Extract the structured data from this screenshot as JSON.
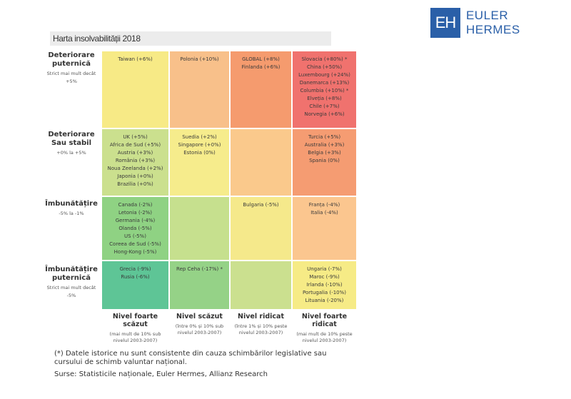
{
  "brand": {
    "logo_letters": "EH",
    "name": "EULER HERMES",
    "color": "#2a5fa8"
  },
  "chart_data": {
    "type": "heatmap",
    "title": "Harta insolvabilității 2018",
    "rows": [
      {
        "title": "Deteriorare puternică",
        "subtitle": "Strict mai mult decât +5%"
      },
      {
        "title": "Deteriorare Sau stabil",
        "subtitle": "+0% la +5%"
      },
      {
        "title": "Îmbunătățire",
        "subtitle": "-5% la -1%"
      },
      {
        "title": "Îmbunătățire puternică",
        "subtitle": "Strict mai mult decât -5%"
      }
    ],
    "columns": [
      {
        "title": "Nivel foarte scăzut",
        "subtitle": "(mai mult de 10% sub nivelul 2003-2007)"
      },
      {
        "title": "Nivel scăzut",
        "subtitle": "(între 0% și 10% sub nivelul 2003-2007)"
      },
      {
        "title": "Nivel ridicat",
        "subtitle": "(între 1% și 10% peste nivelul 2003-2007)"
      },
      {
        "title": "Nivel foarte ridicat",
        "subtitle": "(mai mult de 10% peste nivelul 2003-2007)"
      }
    ],
    "cells": [
      [
        {
          "color": "#f7ea86",
          "items": [
            "Taiwan (+6%)"
          ]
        },
        {
          "color": "#f8c08a",
          "items": [
            "Polonia (+10%)"
          ]
        },
        {
          "color": "#f59b6e",
          "items": [
            "GLOBAL (+8%)",
            "Finlanda (+6%)"
          ]
        },
        {
          "color": "#f0726e",
          "items": [
            "Slovacia (+80%) *",
            "China (+50%)",
            "Luxembourg (+24%)",
            "Danemarca (+13%)",
            "Columbia (+10%) *",
            "Elveția (+8%)",
            "Chile (+7%)",
            "Norvegia (+6%)"
          ]
        }
      ],
      [
        {
          "color": "#cbe08e",
          "items": [
            "UK (+5%)",
            "Africa de Sud (+5%)",
            "Austria (+3%)",
            "România (+3%)",
            "Noua Zeelanda (+2%)",
            "Japonia (+0%)",
            "Brazilia (+0%)"
          ]
        },
        {
          "color": "#f6ec8c",
          "items": [
            "Suedia (+2%)",
            "Singapore (+0%)",
            "Estonia (0%)"
          ]
        },
        {
          "color": "#fac98c",
          "items": []
        },
        {
          "color": "#f59c72",
          "items": [
            "Turcia (+5%)",
            "Australia (+3%)",
            "Belgia (+3%)",
            "Spania (0%)"
          ]
        }
      ],
      [
        {
          "color": "#8fd283",
          "items": [
            "Canada (-2%)",
            "Letonia (-2%)",
            "Germania (-4%)",
            "Olanda (-5%)",
            "US (-5%)",
            "Coreea de Sud (-5%)",
            "Hong-Kong (-5%)"
          ]
        },
        {
          "color": "#c6e08e",
          "items": []
        },
        {
          "color": "#f5e98b",
          "items": [
            "Bulgaria (-5%)"
          ]
        },
        {
          "color": "#fbc68f",
          "items": [
            "Franța (-4%)",
            "Italia (-4%)"
          ]
        }
      ],
      [
        {
          "color": "#5ec596",
          "items": [
            "Grecia (-9%)",
            "Rusia (-6%)"
          ]
        },
        {
          "color": "#95d287",
          "items": [
            "Rep Ceha (-17%) *"
          ]
        },
        {
          "color": "#cbe08f",
          "items": []
        },
        {
          "color": "#f6eb86",
          "items": [
            "Ungaria (-7%)",
            "Maroc (-9%)",
            "Irlanda (-10%)",
            "Portugalia (-10%)",
            "Lituania (-20%)"
          ]
        }
      ]
    ]
  },
  "footnote": "(*) Datele istorice nu sunt consistente din cauza schimbărilor legislative sau cursului de schimb valuntar național.",
  "sources": "Surse: Statisticile naționale, Euler Hermes, Allianz Research"
}
